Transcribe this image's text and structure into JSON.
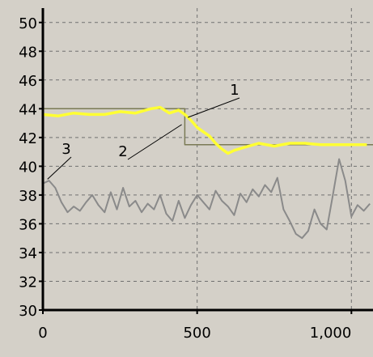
{
  "chart_data": {
    "type": "line",
    "title": "",
    "xlabel": "",
    "ylabel": "",
    "xlim": [
      0,
      1070
    ],
    "ylim": [
      30,
      51
    ],
    "x_ticks": [
      0,
      500,
      1000
    ],
    "x_tick_labels": [
      "0",
      "500",
      "1,000"
    ],
    "y_ticks": [
      30,
      32,
      34,
      36,
      38,
      40,
      42,
      44,
      46,
      48,
      50
    ],
    "y_tick_labels": [
      "30",
      "32",
      "34",
      "36",
      "38",
      "40",
      "42",
      "44",
      "46",
      "48",
      "50"
    ],
    "grid": true,
    "legend": "none",
    "colors": {
      "plot_background": "#d4d0c8",
      "axis": "#000000",
      "grid": "#707070",
      "series_1": "#ffff33",
      "series_2": "#7a7a55",
      "series_3": "#8a8a8a"
    },
    "series": [
      {
        "label": "1",
        "x": [
          0,
          50,
          100,
          150,
          200,
          250,
          300,
          350,
          380,
          410,
          440,
          460,
          480,
          500,
          520,
          540,
          560,
          580,
          600,
          620,
          650,
          700,
          750,
          800,
          850,
          900,
          950,
          1000,
          1050
        ],
        "values": [
          43.6,
          43.5,
          43.7,
          43.6,
          43.6,
          43.8,
          43.7,
          44.0,
          44.1,
          43.7,
          43.9,
          43.6,
          43.2,
          42.7,
          42.4,
          42.1,
          41.6,
          41.2,
          40.9,
          41.1,
          41.3,
          41.6,
          41.4,
          41.6,
          41.6,
          41.5,
          41.5,
          41.5,
          41.5
        ]
      },
      {
        "label": "2",
        "x": [
          0,
          460,
          460,
          1070
        ],
        "values": [
          44.0,
          44.0,
          41.5,
          41.5
        ]
      },
      {
        "label": "3",
        "x": [
          0,
          20,
          40,
          60,
          80,
          100,
          120,
          140,
          160,
          180,
          200,
          220,
          240,
          260,
          280,
          300,
          320,
          340,
          360,
          380,
          400,
          420,
          440,
          460,
          480,
          500,
          520,
          540,
          560,
          580,
          600,
          620,
          640,
          660,
          680,
          700,
          720,
          740,
          760,
          780,
          800,
          820,
          840,
          860,
          880,
          900,
          920,
          940,
          960,
          980,
          1000,
          1020,
          1040,
          1060
        ],
        "values": [
          38.8,
          39.0,
          38.5,
          37.5,
          36.8,
          37.2,
          36.9,
          37.5,
          38.0,
          37.3,
          36.8,
          38.2,
          37.0,
          38.5,
          37.2,
          37.6,
          36.8,
          37.4,
          37.0,
          38.0,
          36.7,
          36.2,
          37.6,
          36.4,
          37.3,
          38.0,
          37.5,
          37.0,
          38.3,
          37.6,
          37.2,
          36.6,
          38.1,
          37.5,
          38.4,
          37.9,
          38.7,
          38.2,
          39.2,
          37.0,
          36.2,
          35.3,
          35.0,
          35.5,
          37.0,
          36.0,
          35.6,
          38.0,
          40.5,
          39.0,
          36.5,
          37.3,
          36.9,
          37.4
        ]
      }
    ]
  }
}
